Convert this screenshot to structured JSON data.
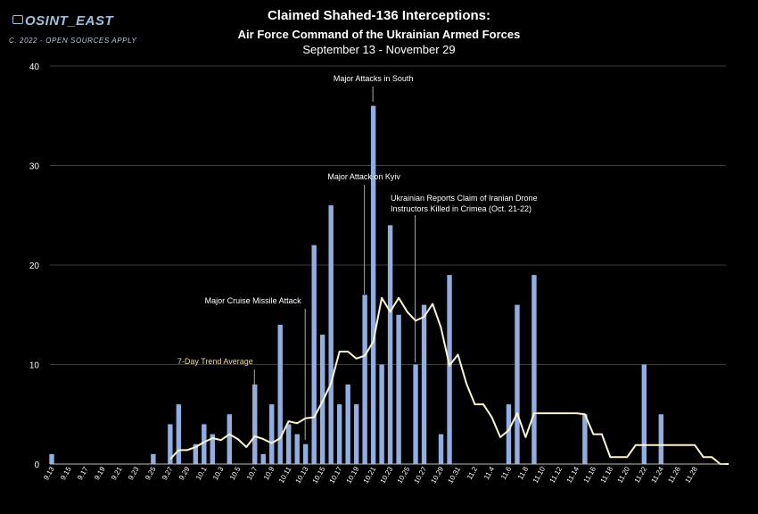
{
  "header": {
    "title": "Claimed Shahed-136 Interceptions:",
    "subtitle": "Air Force Command of the Ukrainian Armed Forces",
    "date_range": "September 13 - November 29"
  },
  "branding": {
    "logo_text": "OSINT_EAST",
    "credit": "C. 2022 - OPEN SOURCES APPLY"
  },
  "colors": {
    "bar": "#92aee0",
    "trend": "#fdf4d4",
    "trend_label": "#f3d686",
    "grid": "#3a3a3a",
    "axis": "#bbbbbb"
  },
  "chart_data": {
    "type": "bar",
    "title": "Claimed Shahed-136 Interceptions",
    "ylim": [
      0,
      40
    ],
    "yticks": [
      0,
      10,
      20,
      30,
      40
    ],
    "xlabels": [
      "9.13",
      "9.15",
      "9.17",
      "9.19",
      "9.21",
      "9.23",
      "9.25",
      "9.27",
      "9.29",
      "10.1",
      "10.3",
      "10.5",
      "10.7",
      "10.9",
      "10.11",
      "10.13",
      "10.15",
      "10.17",
      "10.19",
      "10.21",
      "10.23",
      "10.25",
      "10.27",
      "10.29",
      "10.31",
      "11.2",
      "11.4",
      "11.6",
      "11.8",
      "11.10",
      "11.12",
      "11.14",
      "11.16",
      "11.18",
      "11.20",
      "11.22",
      "11.24",
      "11.26",
      "11.28"
    ],
    "series": [
      {
        "name": "Claimed interceptions",
        "type": "bar",
        "values": [
          1,
          0,
          0,
          0,
          0,
          0,
          0,
          0,
          0,
          0,
          0,
          0,
          1,
          0,
          4,
          6,
          0,
          2,
          4,
          3,
          0,
          5,
          0,
          0,
          8,
          1,
          6,
          14,
          4,
          3,
          2,
          22,
          13,
          26,
          6,
          8,
          6,
          17,
          36,
          10,
          24,
          15,
          0,
          10,
          16,
          0,
          3,
          19,
          0,
          0,
          0,
          0,
          0,
          0,
          6,
          16,
          0,
          19,
          0,
          0,
          0,
          0,
          0,
          5,
          0,
          0,
          0,
          0,
          0,
          0,
          10,
          0,
          5,
          0,
          0,
          0,
          0,
          0,
          0,
          0,
          0
        ]
      },
      {
        "name": "7-Day Trend Average",
        "type": "line",
        "values": [
          null,
          null,
          null,
          null,
          null,
          null,
          null,
          null,
          null,
          null,
          null,
          null,
          null,
          null,
          0.5,
          1.4,
          1.4,
          1.7,
          2.2,
          2.6,
          2.4,
          3.0,
          2.5,
          1.7,
          2.8,
          2.5,
          2.1,
          2.6,
          4.3,
          4.1,
          4.6,
          4.7,
          6.3,
          8.1,
          11.3,
          11.3,
          10.6,
          10.9,
          12.3,
          16.7,
          15.3,
          16.7,
          15.3,
          14.4,
          14.8,
          16.1,
          13.7,
          9.9,
          11.0,
          8.1,
          6.0,
          6.0,
          4.7,
          2.7,
          3.4,
          5.1,
          2.7,
          5.1,
          5.1,
          5.1,
          5.1,
          5.1,
          5.1,
          5.0,
          3.0,
          3.0,
          0.7,
          0.7,
          0.7,
          1.9,
          1.9,
          1.9,
          1.9,
          1.9,
          1.9,
          1.9,
          1.9,
          0.7,
          0.7,
          0,
          0
        ]
      }
    ],
    "annotations": [
      {
        "text": "Major Attacks in South",
        "x_index": 38
      },
      {
        "text": "Major Attack on Kyiv",
        "x_index": 37
      },
      {
        "text": "Ukrainian Reports Claim of Iranian Drone",
        "text2": "Instructors Killed in Crimea (Oct. 21-22)",
        "x_index": 43
      },
      {
        "text": "Major Cruise Missile Attack",
        "x_index": 30
      },
      {
        "text": "7-Day Trend Average",
        "x_index": 24
      }
    ]
  }
}
